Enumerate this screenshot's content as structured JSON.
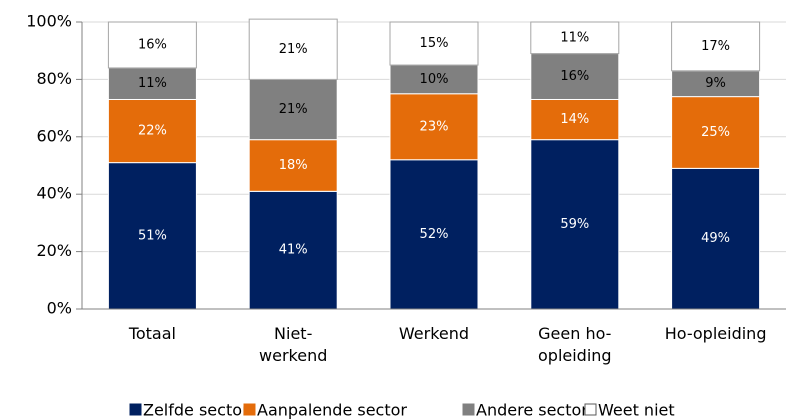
{
  "chart_data": {
    "type": "stacked_bar",
    "categories": [
      "Totaal",
      "Niet-\nwerkend",
      "Werkend",
      "Geen ho-\nopleiding",
      "Ho-opleiding"
    ],
    "series": [
      {
        "name": "Zelfde sector",
        "color": "#002060",
        "values": [
          51,
          41,
          52,
          59,
          49
        ],
        "value_labels": [
          "51%",
          "41%",
          "52%",
          "59%",
          "49%"
        ]
      },
      {
        "name": "Aanpalende sector",
        "color": "#e46c0a",
        "values": [
          22,
          18,
          23,
          14,
          25
        ],
        "value_labels": [
          "22%",
          "18%",
          "23%",
          "14%",
          "25%"
        ]
      },
      {
        "name": "Andere sector",
        "color": "#808080",
        "values": [
          11,
          21,
          10,
          16,
          9
        ],
        "value_labels": [
          "11%",
          "21%",
          "10%",
          "16%",
          "9%"
        ]
      },
      {
        "name": "Weet niet",
        "color": "#ffffff",
        "values": [
          16,
          21,
          15,
          11,
          17
        ],
        "value_labels": [
          "16%",
          "21%",
          "15%",
          "11%",
          "17%"
        ]
      }
    ],
    "ylim": [
      0,
      100
    ],
    "yticks": [
      {
        "value": 0,
        "label": "0%"
      },
      {
        "value": 20,
        "label": "20%"
      },
      {
        "value": 40,
        "label": "40%"
      },
      {
        "value": 60,
        "label": "60%"
      },
      {
        "value": 80,
        "label": "80%"
      },
      {
        "value": 100,
        "label": "100%"
      }
    ],
    "grid": true
  }
}
